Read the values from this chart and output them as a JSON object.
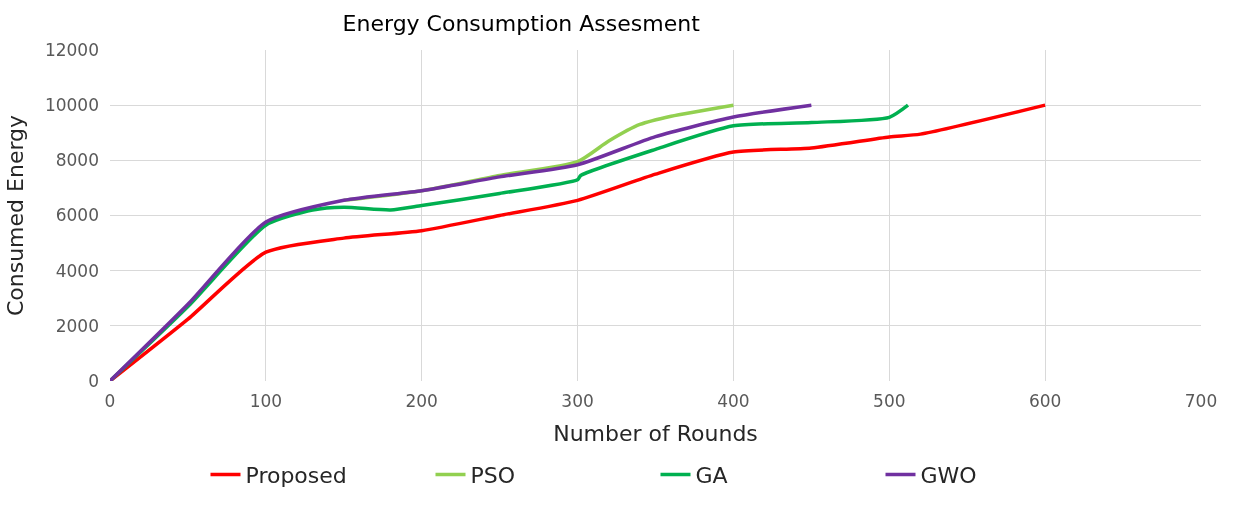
{
  "chart_data": {
    "type": "line",
    "title": "Energy Consumption Assesment",
    "xlabel": "Number of Rounds",
    "ylabel": "Consumed Energy",
    "xlim": [
      0,
      700
    ],
    "xticks": [
      0,
      100,
      200,
      300,
      400,
      500,
      600,
      700
    ],
    "ylim": [
      0,
      12000
    ],
    "yticks": [
      0,
      2000,
      4000,
      6000,
      8000,
      10000,
      12000
    ],
    "grid": true,
    "legend": "bottom",
    "marker": "none",
    "line_style": "solid",
    "series": [
      {
        "name": "Proposed",
        "color": "#ff0000",
        "x": [
          0,
          50,
          100,
          150,
          200,
          250,
          300,
          350,
          400,
          450,
          500,
          520,
          600
        ],
        "values": [
          0,
          2240,
          4670,
          5180,
          5450,
          6000,
          6550,
          7500,
          8300,
          8450,
          8850,
          8950,
          10000
        ]
      },
      {
        "name": "PSO",
        "color": "#92d050",
        "x": [
          150,
          200,
          250,
          300,
          320,
          340,
          360,
          400
        ],
        "values": [
          6550,
          6900,
          7450,
          7950,
          8700,
          9300,
          9600,
          10000
        ]
      },
      {
        "name": "GA",
        "color": "#00b050",
        "x": [
          0,
          50,
          100,
          130,
          150,
          180,
          200,
          250,
          300,
          302,
          350,
          400,
          450,
          500,
          512
        ],
        "values": [
          0,
          2700,
          5650,
          6200,
          6300,
          6200,
          6360,
          6800,
          7300,
          7450,
          8400,
          9250,
          9370,
          9560,
          10000
        ]
      },
      {
        "name": "GWO",
        "color": "#7030a0",
        "x": [
          0,
          50,
          100,
          150,
          200,
          250,
          300,
          350,
          400,
          450
        ],
        "values": [
          0,
          2780,
          5760,
          6550,
          6900,
          7400,
          7840,
          8860,
          9570,
          10000
        ]
      }
    ]
  }
}
